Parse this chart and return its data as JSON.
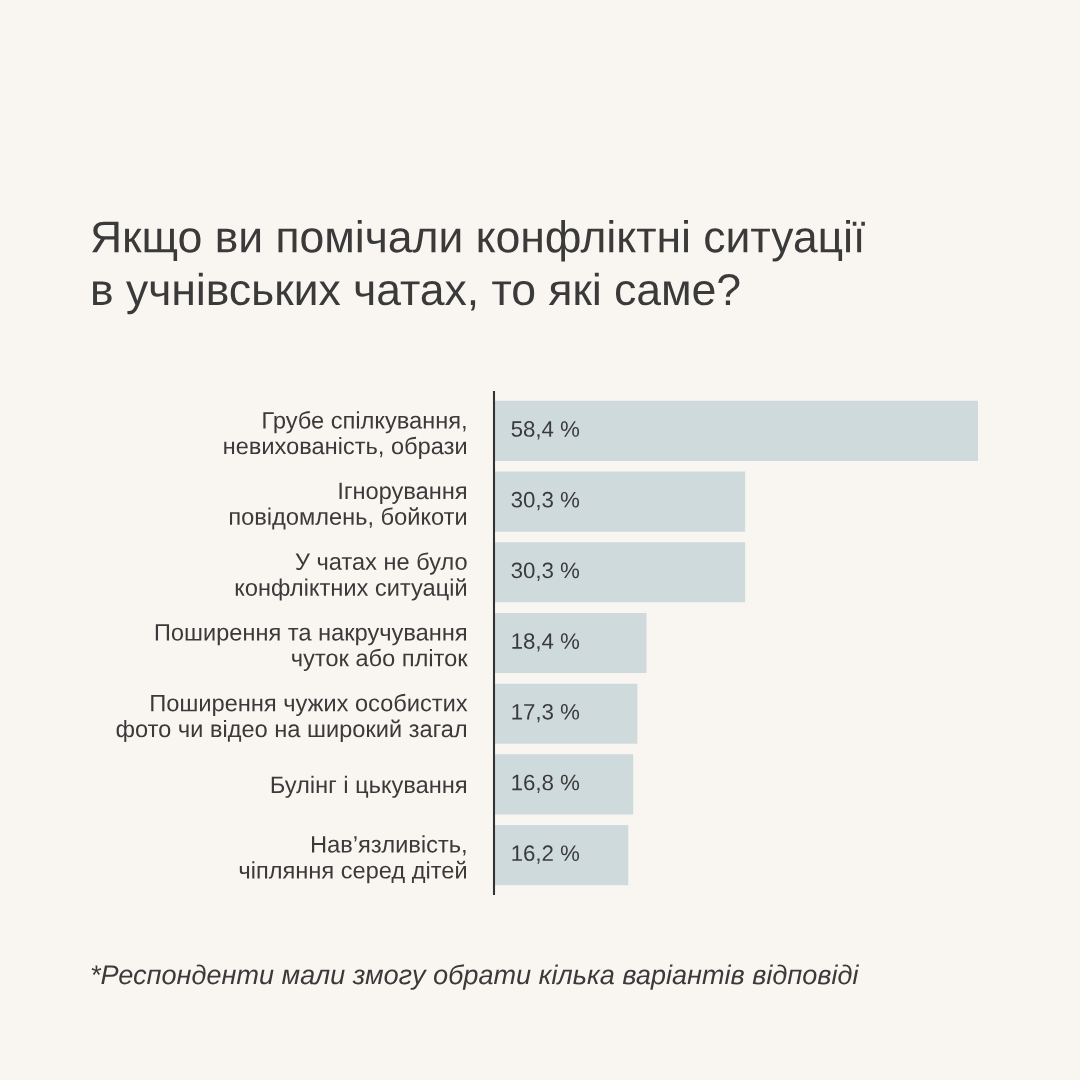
{
  "chart_data": {
    "type": "bar",
    "orientation": "horizontal",
    "title": "Якщо ви помічали конфліктні ситуації\nв учнівських чатах, то які саме?",
    "categories": [
      "Грубе спілкування,\nневихованість, образи",
      "Ігнорування\nповідомлень, бойкоти",
      "У чатах не було\nконфліктних ситуацій",
      "Поширення та накручування\nчуток або пліток",
      "Поширення чужих особистих\nфото чи відео на широкий загал",
      "Булінг і цькування",
      "Нав’язливість,\nчіпляння серед дітей"
    ],
    "values": [
      58.4,
      30.3,
      30.3,
      18.4,
      17.3,
      16.8,
      16.2
    ],
    "value_labels": [
      "58,4 %",
      "30,3 %",
      "30,3 %",
      "18,4 %",
      "17,3 %",
      "16,8 %",
      "16,2 %"
    ],
    "color": "#cfdadd",
    "tick_labels": "y",
    "annotations": [
      "*Респонденти мали змогу обрати кілька варіантів відповіді"
    ]
  }
}
